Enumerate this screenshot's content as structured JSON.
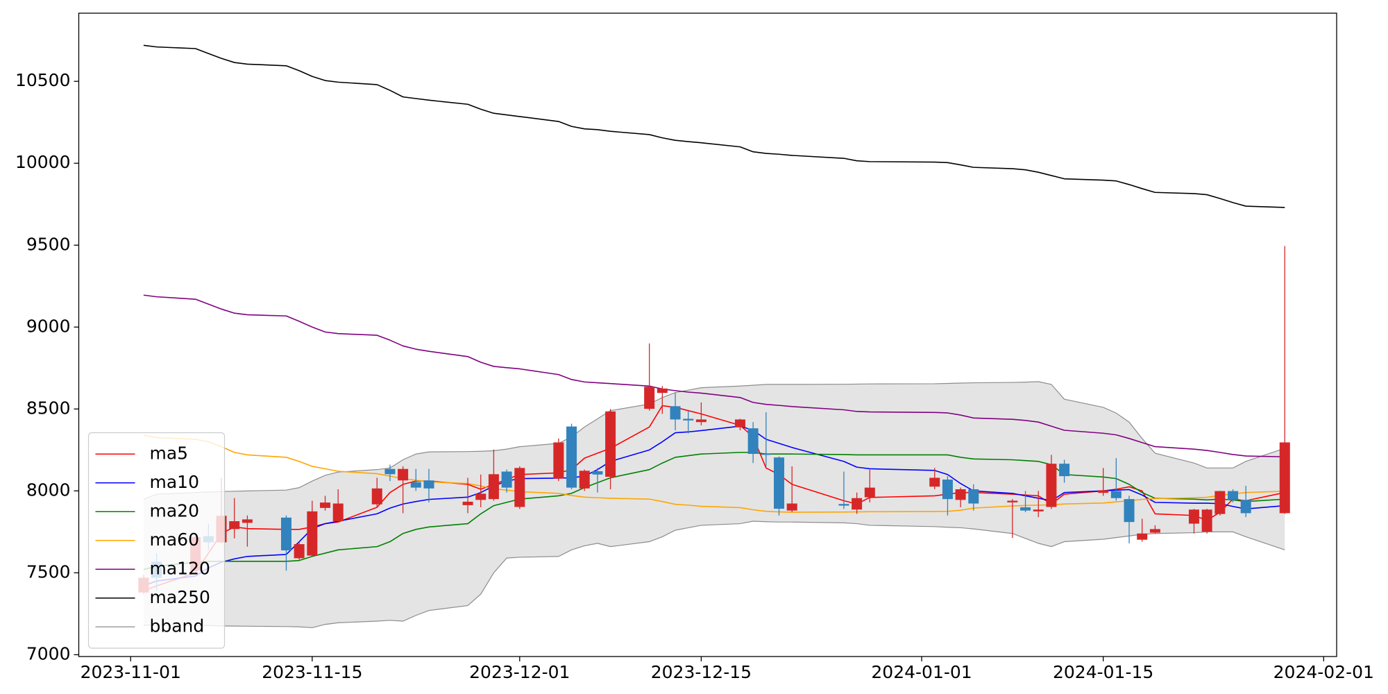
{
  "chart_data": {
    "type": "candlestick",
    "x": [
      "2023-11-02",
      "2023-11-03",
      "2023-11-06",
      "2023-11-07",
      "2023-11-08",
      "2023-11-09",
      "2023-11-10",
      "2023-11-13",
      "2023-11-14",
      "2023-11-15",
      "2023-11-16",
      "2023-11-17",
      "2023-11-20",
      "2023-11-21",
      "2023-11-22",
      "2023-11-23",
      "2023-11-24",
      "2023-11-27",
      "2023-11-28",
      "2023-11-29",
      "2023-11-30",
      "2023-12-01",
      "2023-12-04",
      "2023-12-05",
      "2023-12-06",
      "2023-12-07",
      "2023-12-08",
      "2023-12-11",
      "2023-12-12",
      "2023-12-13",
      "2023-12-14",
      "2023-12-15",
      "2023-12-18",
      "2023-12-19",
      "2023-12-20",
      "2023-12-21",
      "2023-12-22",
      "2023-12-26",
      "2023-12-27",
      "2023-12-28",
      "2024-01-02",
      "2024-01-03",
      "2024-01-04",
      "2024-01-05",
      "2024-01-08",
      "2024-01-09",
      "2024-01-10",
      "2024-01-11",
      "2024-01-12",
      "2024-01-15",
      "2024-01-16",
      "2024-01-17",
      "2024-01-18",
      "2024-01-19",
      "2024-01-22",
      "2024-01-23",
      "2024-01-24",
      "2024-01-25",
      "2024-01-26",
      "2024-01-29"
    ],
    "open": [
      7380,
      7567,
      7513,
      7724,
      7686,
      7767,
      7805,
      7837,
      7589,
      7605,
      7896,
      7815,
      7918,
      8134,
      8064,
      8053,
      8064,
      7913,
      7945,
      7950,
      8118,
      7902,
      8075,
      8393,
      8015,
      8120,
      8086,
      8501,
      8598,
      8517,
      8440,
      8420,
      8388,
      8382,
      8226,
      8204,
      7880,
      7920,
      7886,
      7961,
      8026,
      8069,
      7945,
      8010,
      7930,
      7900,
      7875,
      7902,
      8166,
      7988,
      7999,
      7950,
      7702,
      7745,
      7800,
      7751,
      7859,
      7999,
      7945,
      7864
    ],
    "high": [
      7490,
      7620,
      7730,
      7800,
      8080,
      7956,
      7850,
      7850,
      7690,
      7940,
      7970,
      8010,
      8080,
      8160,
      8150,
      8134,
      8134,
      8080,
      8100,
      8253,
      8130,
      8150,
      8320,
      8410,
      8130,
      8140,
      8500,
      8900,
      8640,
      8600,
      8490,
      8540,
      8440,
      8420,
      8480,
      8210,
      8150,
      8118,
      7990,
      8130,
      8140,
      8090,
      8020,
      8040,
      7950,
      8000,
      8000,
      8220,
      8190,
      8140,
      8200,
      7970,
      7830,
      7790,
      7890,
      7890,
      8000,
      8010,
      8031,
      9495
    ],
    "low": [
      7370,
      7390,
      7500,
      7640,
      7680,
      7710,
      7660,
      7513,
      7580,
      7600,
      7880,
      7810,
      7900,
      8060,
      7864,
      8000,
      7930,
      7864,
      7900,
      7940,
      7990,
      7890,
      8060,
      8010,
      8000,
      7990,
      8010,
      8490,
      8470,
      8370,
      8350,
      8400,
      8370,
      8170,
      8150,
      7850,
      7870,
      7890,
      7860,
      7930,
      8010,
      7850,
      7900,
      7880,
      7713,
      7870,
      7840,
      7890,
      8050,
      7970,
      7940,
      7680,
      7690,
      7740,
      7740,
      7740,
      7850,
      7930,
      7840,
      7860
    ],
    "close": [
      7470,
      7470,
      7718,
      7686,
      7848,
      7815,
      7826,
      7637,
      7675,
      7875,
      7929,
      7923,
      8015,
      8102,
      8134,
      8020,
      8015,
      7934,
      7983,
      8102,
      8020,
      8140,
      8296,
      8020,
      8123,
      8100,
      8485,
      8636,
      8625,
      8436,
      8430,
      8436,
      8436,
      8226,
      8220,
      7891,
      7923,
      7910,
      7956,
      8020,
      8080,
      7950,
      8010,
      7923,
      7940,
      7880,
      7886,
      8166,
      8090,
      8004,
      7956,
      7810,
      7740,
      7767,
      7886,
      7886,
      7999,
      7945,
      7864,
      8296
    ],
    "up_color": "#d62728",
    "down_color": "#3182bd",
    "band": {
      "name": "bband",
      "color": "#8c8c8c",
      "fill": "#e4e4e4",
      "upper": [
        7950,
        7980,
        7990,
        7993,
        7996,
        7998,
        8000,
        8005,
        8020,
        8060,
        8095,
        8115,
        8130,
        8140,
        8190,
        8225,
        8238,
        8240,
        8242,
        8245,
        8255,
        8270,
        8290,
        8330,
        8390,
        8440,
        8490,
        8530,
        8570,
        8600,
        8615,
        8630,
        8640,
        8645,
        8650,
        8650,
        8650,
        8651,
        8652,
        8653,
        8654,
        8656,
        8658,
        8660,
        8662,
        8664,
        8667,
        8650,
        8560,
        8510,
        8475,
        8420,
        8320,
        8230,
        8170,
        8140,
        8140,
        8140,
        8180,
        8260
      ],
      "lower": [
        7180,
        7180,
        7180,
        7178,
        7176,
        7175,
        7174,
        7172,
        7170,
        7165,
        7185,
        7195,
        7205,
        7210,
        7205,
        7240,
        7270,
        7300,
        7370,
        7500,
        7590,
        7595,
        7600,
        7640,
        7665,
        7680,
        7660,
        7690,
        7720,
        7760,
        7775,
        7790,
        7800,
        7815,
        7812,
        7810,
        7810,
        7805,
        7800,
        7790,
        7782,
        7778,
        7775,
        7768,
        7740,
        7710,
        7680,
        7660,
        7690,
        7705,
        7715,
        7725,
        7735,
        7740,
        7745,
        7750,
        7750,
        7750,
        7720,
        7640
      ]
    },
    "series": [
      {
        "name": "ma5",
        "color": "#ff0000",
        "values": [
          7390,
          7420,
          7500,
          7620,
          7740,
          7780,
          7770,
          7765,
          7765,
          7780,
          7800,
          7810,
          7900,
          7990,
          8040,
          8060,
          8060,
          8040,
          8010,
          8040,
          8070,
          8100,
          8110,
          8130,
          8200,
          8230,
          8260,
          8390,
          8520,
          8510,
          8490,
          8470,
          8400,
          8330,
          8140,
          8100,
          8040,
          7940,
          7920,
          7960,
          7970,
          7980,
          7990,
          7990,
          7980,
          7975,
          7970,
          7920,
          7980,
          8000,
          8010,
          8025,
          8000,
          7860,
          7850,
          7820,
          7870,
          7950,
          7940,
          7990
        ]
      },
      {
        "name": "ma10",
        "color": "#0000ff",
        "values": [
          7420,
          7450,
          7480,
          7530,
          7565,
          7585,
          7600,
          7612,
          7690,
          7770,
          7800,
          7815,
          7860,
          7895,
          7920,
          7935,
          7948,
          7962,
          7990,
          8030,
          8060,
          8075,
          8078,
          8080,
          8090,
          8130,
          8180,
          8250,
          8300,
          8355,
          8360,
          8368,
          8395,
          8370,
          8315,
          8290,
          8265,
          8180,
          8145,
          8135,
          8125,
          8100,
          8045,
          8000,
          7985,
          7970,
          7955,
          7940,
          7990,
          8000,
          8005,
          8008,
          7975,
          7930,
          7925,
          7925,
          7922,
          7905,
          7890,
          7910
        ]
      },
      {
        "name": "ma20",
        "color": "#008000",
        "values": [
          7520,
          7540,
          7565,
          7570,
          7570,
          7570,
          7570,
          7570,
          7575,
          7600,
          7620,
          7640,
          7660,
          7690,
          7740,
          7765,
          7780,
          7800,
          7860,
          7910,
          7930,
          7950,
          7970,
          7985,
          8020,
          8050,
          8080,
          8130,
          8170,
          8205,
          8215,
          8225,
          8235,
          8235,
          8225,
          8225,
          8225,
          8222,
          8220,
          8220,
          8220,
          8220,
          8205,
          8195,
          8190,
          8185,
          8180,
          8160,
          8100,
          8085,
          8075,
          8040,
          7990,
          7955,
          7950,
          7945,
          7950,
          7945,
          7935,
          7950
        ]
      },
      {
        "name": "ma60",
        "color": "#ffa500",
        "values": [
          8340,
          8325,
          8315,
          8300,
          8270,
          8235,
          8220,
          8205,
          8180,
          8150,
          8135,
          8120,
          8105,
          8090,
          8075,
          8065,
          8055,
          8045,
          8030,
          8012,
          8005,
          7995,
          7985,
          7972,
          7962,
          7958,
          7955,
          7950,
          7935,
          7918,
          7913,
          7906,
          7898,
          7885,
          7875,
          7872,
          7870,
          7871,
          7872,
          7873,
          7874,
          7875,
          7882,
          7895,
          7908,
          7911,
          7913,
          7915,
          7920,
          7926,
          7933,
          7940,
          7948,
          7953,
          7958,
          7961,
          7972,
          7982,
          7990,
          7998
        ]
      },
      {
        "name": "ma120",
        "color": "#800080",
        "values": [
          9195,
          9185,
          9170,
          9140,
          9110,
          9085,
          9075,
          9068,
          9035,
          9000,
          8970,
          8960,
          8950,
          8920,
          8885,
          8865,
          8852,
          8820,
          8785,
          8760,
          8752,
          8745,
          8710,
          8680,
          8665,
          8660,
          8655,
          8640,
          8622,
          8612,
          8603,
          8597,
          8570,
          8540,
          8528,
          8522,
          8515,
          8495,
          8485,
          8482,
          8479,
          8476,
          8463,
          8445,
          8437,
          8430,
          8420,
          8395,
          8370,
          8352,
          8342,
          8320,
          8295,
          8270,
          8255,
          8247,
          8235,
          8222,
          8213,
          8208
        ]
      },
      {
        "name": "ma250",
        "color": "#000000",
        "values": [
          10720,
          10710,
          10700,
          10670,
          10640,
          10615,
          10605,
          10595,
          10565,
          10530,
          10505,
          10495,
          10480,
          10445,
          10405,
          10395,
          10385,
          10360,
          10330,
          10305,
          10295,
          10285,
          10255,
          10225,
          10210,
          10205,
          10195,
          10175,
          10155,
          10140,
          10132,
          10125,
          10100,
          10070,
          10060,
          10055,
          10048,
          10030,
          10015,
          10010,
          10007,
          10004,
          9990,
          9975,
          9967,
          9960,
          9945,
          9925,
          9905,
          9897,
          9892,
          9870,
          9845,
          9822,
          9815,
          9808,
          9785,
          9760,
          9738,
          9730
        ]
      }
    ],
    "xlim": [
      "2023-10-28",
      "2024-02-02"
    ],
    "xticks": [
      "2023-11-01",
      "2023-11-15",
      "2023-12-01",
      "2023-12-15",
      "2024-01-01",
      "2024-01-15",
      "2024-02-01"
    ],
    "ylim": [
      6989,
      10916
    ],
    "yticks": [
      7000,
      7500,
      8000,
      8500,
      9000,
      9500,
      10000,
      10500
    ],
    "legend": "lower left"
  }
}
